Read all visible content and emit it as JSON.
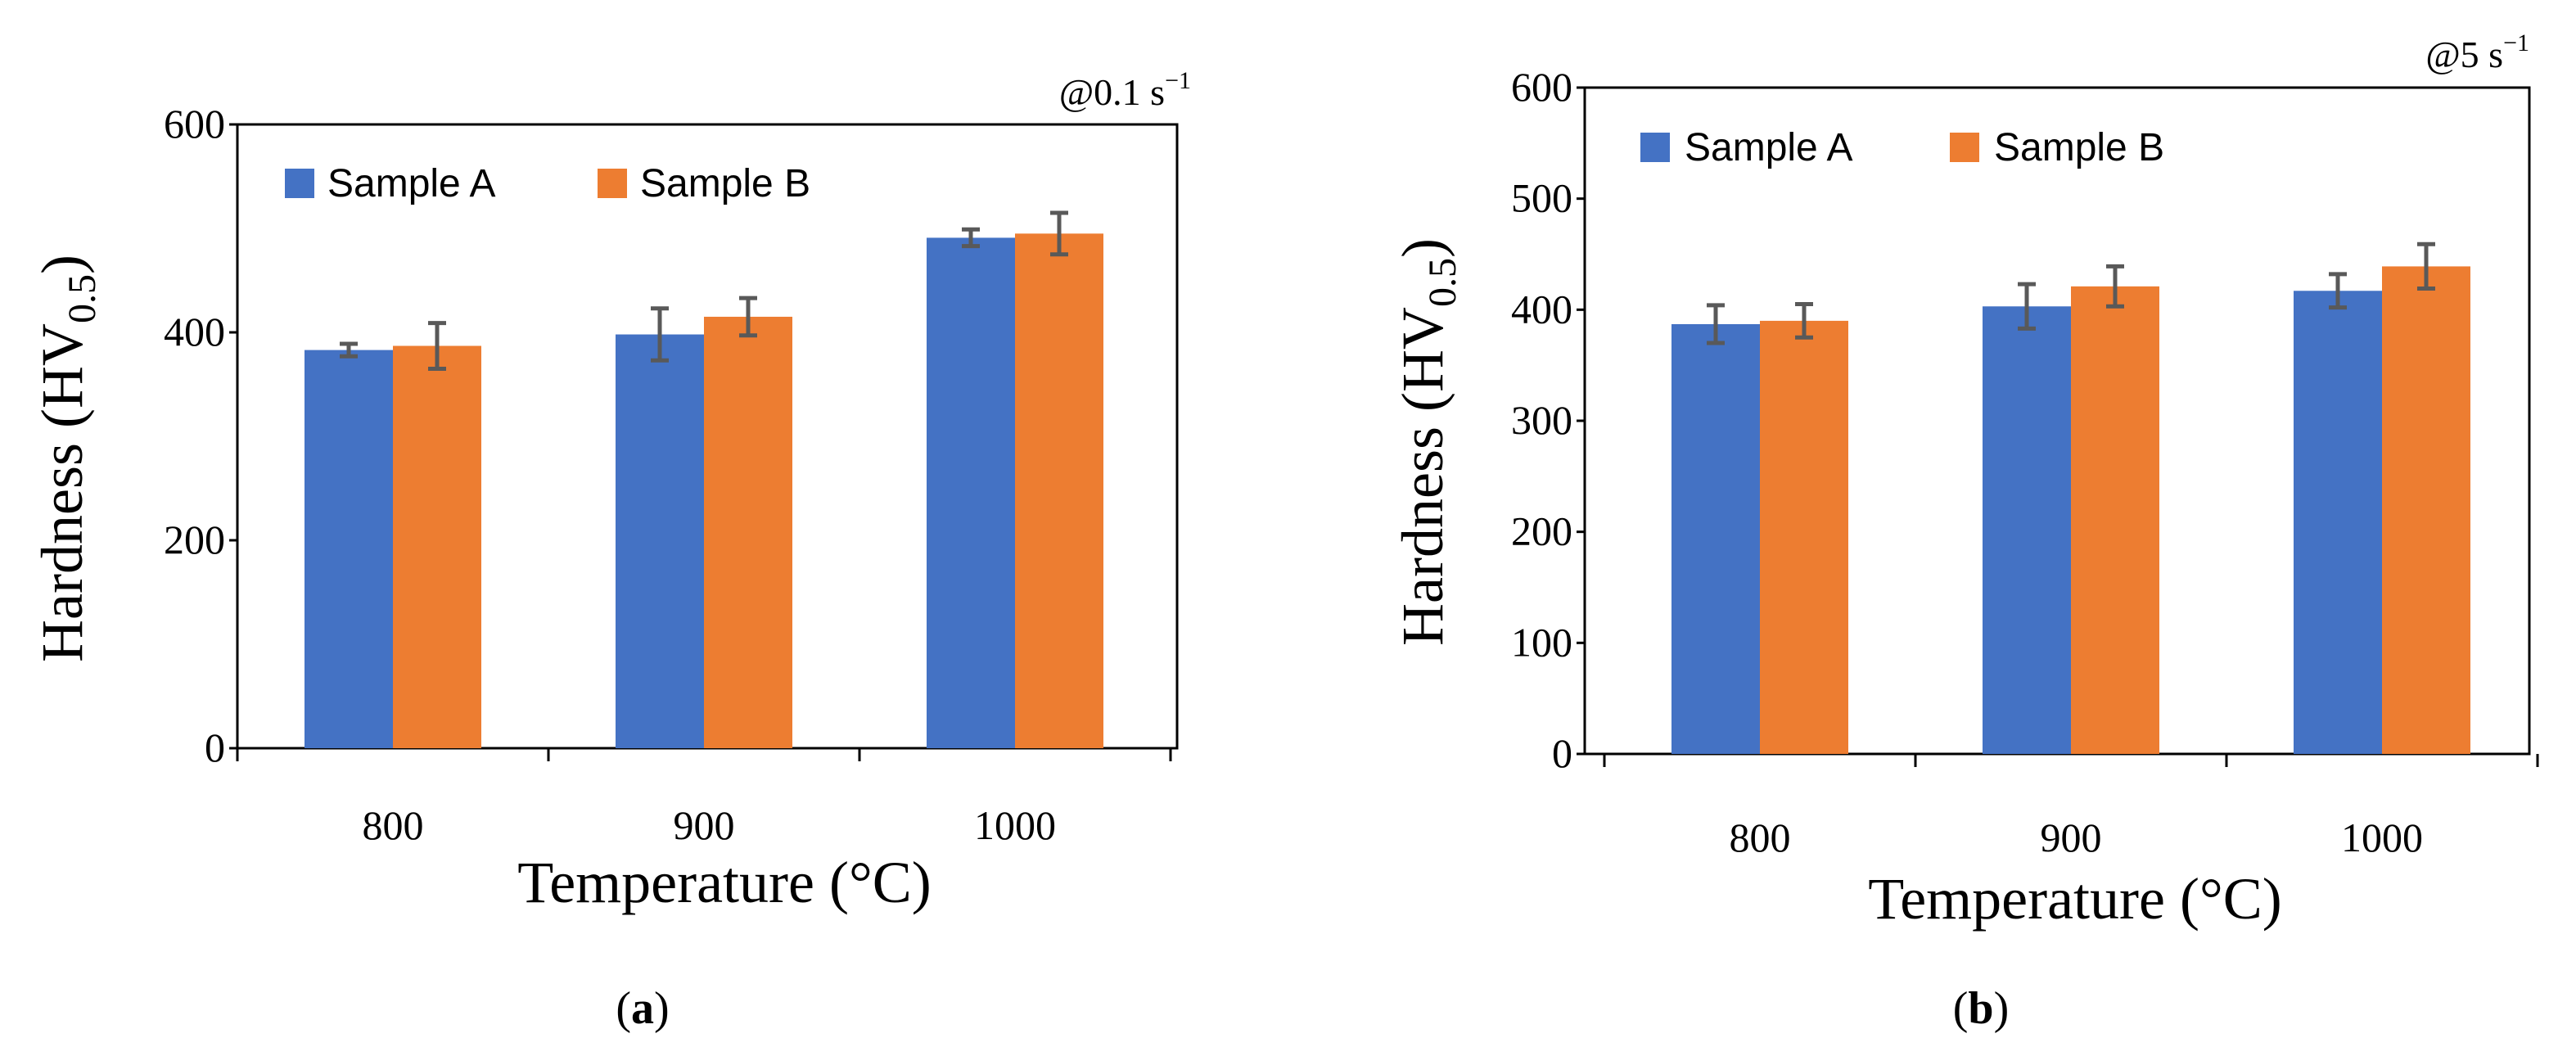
{
  "colors": {
    "sample_a": "#4472C4",
    "sample_b": "#ED7D31",
    "error_bar": "#595959",
    "axis": "#000000"
  },
  "chart_data": [
    {
      "type": "bar",
      "panel_label": "a",
      "rate_label": "@0.1 s",
      "rate_exp": "−1",
      "xlabel": "Temperature (°C)",
      "ylabel": "Hardness (HV",
      "ylabel_sub": "0.5",
      "ylabel_close": ")",
      "categories": [
        "800",
        "900",
        "1000"
      ],
      "ylim": [
        0,
        600
      ],
      "yticks": [
        0,
        200,
        400,
        600
      ],
      "series": [
        {
          "name": "Sample A",
          "values": [
            383,
            398,
            491
          ],
          "errors": [
            6,
            25,
            8
          ]
        },
        {
          "name": "Sample B",
          "values": [
            387,
            415,
            495
          ],
          "errors": [
            22,
            18,
            20
          ]
        }
      ]
    },
    {
      "type": "bar",
      "panel_label": "b",
      "rate_label": "@5 s",
      "rate_exp": "−1",
      "xlabel": "Temperature (°C)",
      "ylabel": "Hardness (HV",
      "ylabel_sub": "0.5",
      "ylabel_close": ")",
      "categories": [
        "800",
        "900",
        "1000"
      ],
      "ylim": [
        0,
        600
      ],
      "yticks": [
        0,
        100,
        200,
        300,
        400,
        500,
        600
      ],
      "series": [
        {
          "name": "Sample A",
          "values": [
            387,
            403,
            417
          ],
          "errors": [
            17,
            20,
            15
          ]
        },
        {
          "name": "Sample B",
          "values": [
            390,
            421,
            439
          ],
          "errors": [
            15,
            18,
            20
          ]
        }
      ]
    }
  ]
}
